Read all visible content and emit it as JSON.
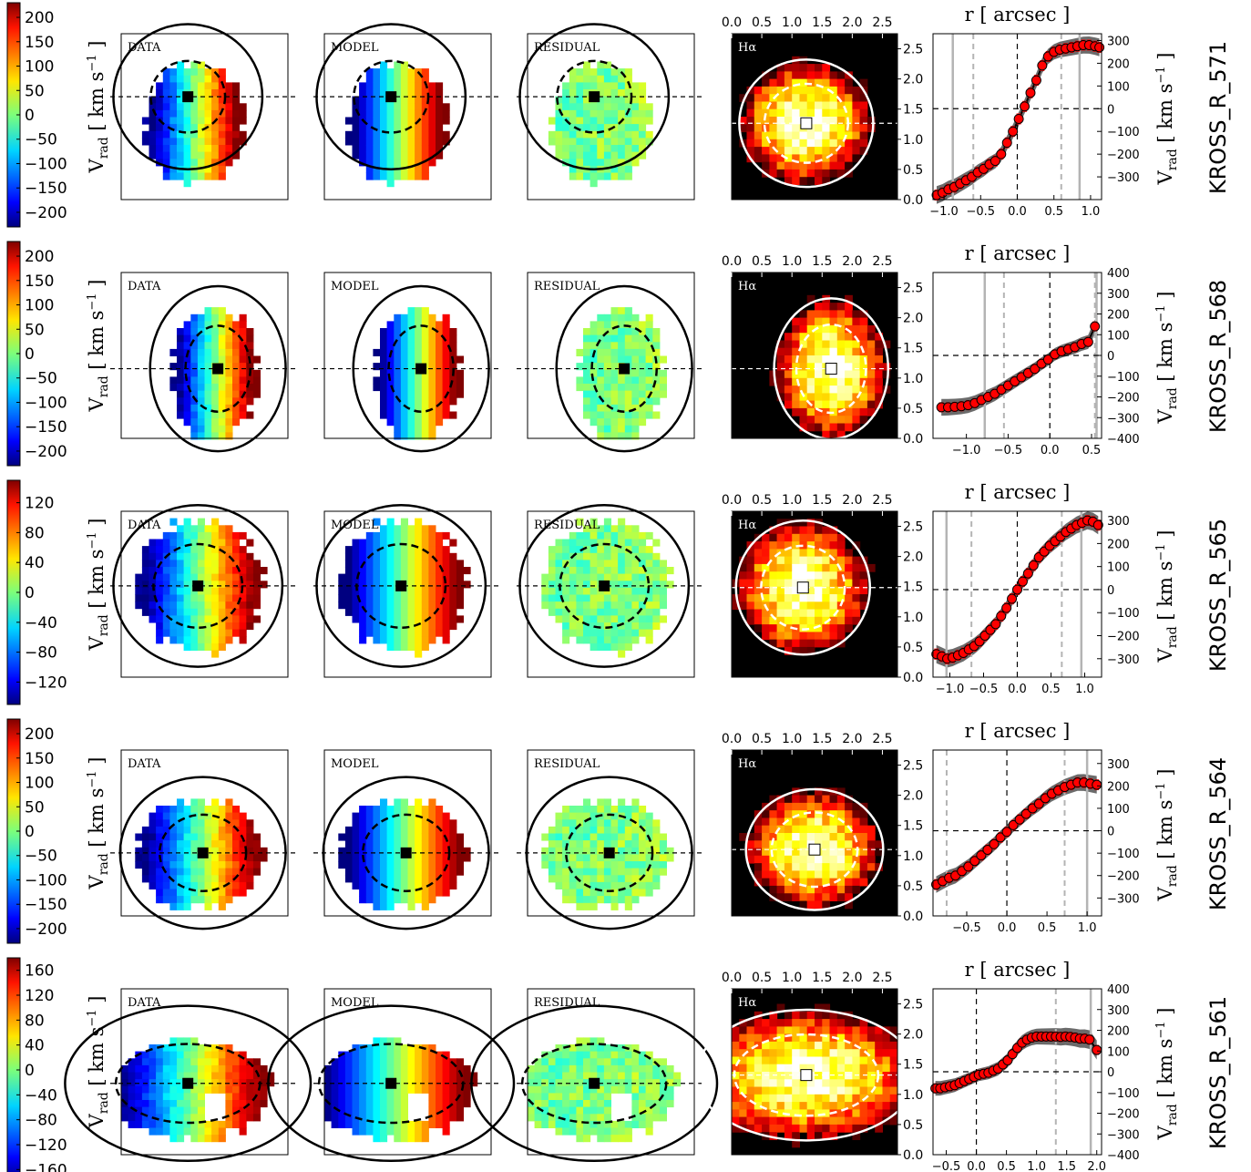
{
  "figure": {
    "type": "kinematic-maps-and-rotation-curves",
    "panel_labels": {
      "data": "DATA",
      "model": "MODEL",
      "residual": "RESIDUAL",
      "halpha": "Hα"
    },
    "colorbar_label_main": "V",
    "colorbar_label_sub": "rad",
    "colorbar_label_unit": "[ km s",
    "colorbar_label_exp": "−1",
    "colorbar_label_close": "]",
    "rc_top_label": "r [ arcsec ]",
    "colormap_velocity": "jet",
    "colormap_halpha": "hot",
    "colors": {
      "points": "#ff0000",
      "model_band": "#3a3a3a",
      "model_line": "#000000",
      "grey_lines": "#b4b4b4"
    }
  },
  "chart_data": [
    {
      "galaxy": "KROSS_R_571",
      "colorbar_ticks": [
        "200",
        "150",
        "100",
        "50",
        "0",
        "−50",
        "−100",
        "−150",
        "−200"
      ],
      "colorbar_range": [
        -230,
        230
      ],
      "halpha_axis_ticks": [
        "0.0",
        "0.5",
        "1.0",
        "1.5",
        "2.0",
        "2.5"
      ],
      "halpha_right_ticks": [
        "2.5",
        "2.0",
        "1.5",
        "1.0",
        "0.5",
        "0.0"
      ],
      "rc_x_ticks": [
        "−1.0",
        "−0.5",
        "0.0",
        "0.5",
        "1.0"
      ],
      "rc_y_ticks": [
        "300",
        "200",
        "100",
        "0",
        "−100",
        "−200",
        "−300"
      ],
      "xlim": [
        -1.15,
        1.15
      ],
      "ylim": [
        -400,
        330
      ],
      "x": [
        -1.1,
        -1.02,
        -0.94,
        -0.86,
        -0.78,
        -0.7,
        -0.62,
        -0.54,
        -0.46,
        -0.38,
        -0.3,
        -0.22,
        -0.14,
        -0.06,
        0.02,
        0.1,
        0.18,
        0.26,
        0.34,
        0.42,
        0.5,
        0.58,
        0.66,
        0.74,
        0.82,
        0.9,
        0.98,
        1.06,
        1.12
      ],
      "y": [
        -380,
        -370,
        -355,
        -345,
        -330,
        -315,
        -300,
        -280,
        -265,
        -245,
        -230,
        -200,
        -150,
        -100,
        -45,
        10,
        70,
        125,
        190,
        230,
        250,
        260,
        265,
        270,
        275,
        280,
        280,
        275,
        270
      ],
      "dashed_lines": [
        -0.6,
        0.6
      ],
      "grey_lines": [
        -0.88,
        0.85
      ],
      "center_line": 0.0
    },
    {
      "galaxy": "KROSS_R_568",
      "colorbar_ticks": [
        "200",
        "150",
        "100",
        "50",
        "0",
        "−50",
        "−100",
        "−150",
        "−200"
      ],
      "colorbar_range": [
        -230,
        230
      ],
      "halpha_axis_ticks": [
        "0.0",
        "0.5",
        "1.0",
        "1.5",
        "2.0",
        "2.5"
      ],
      "halpha_right_ticks": [
        "2.5",
        "2.0",
        "1.5",
        "1.0",
        "0.5",
        "0.0"
      ],
      "rc_x_ticks": [
        "−1.0",
        "−0.5",
        "0.0",
        "0.5"
      ],
      "rc_y_ticks": [
        "400",
        "300",
        "200",
        "100",
        "0",
        "−100",
        "−200",
        "−300",
        "−400"
      ],
      "xlim": [
        -1.4,
        0.62
      ],
      "ylim": [
        -400,
        400
      ],
      "x": [
        -1.3,
        -1.22,
        -1.14,
        -1.06,
        -0.98,
        -0.9,
        -0.82,
        -0.74,
        -0.66,
        -0.58,
        -0.5,
        -0.42,
        -0.34,
        -0.26,
        -0.18,
        -0.1,
        -0.02,
        0.06,
        0.14,
        0.22,
        0.3,
        0.38,
        0.46,
        0.54
      ],
      "y": [
        -250,
        -250,
        -248,
        -245,
        -240,
        -230,
        -215,
        -200,
        -185,
        -165,
        -145,
        -125,
        -105,
        -85,
        -65,
        -40,
        -20,
        5,
        20,
        30,
        40,
        55,
        65,
        140
      ],
      "dashed_lines": [
        -0.55,
        0.54
      ],
      "grey_lines": [
        -0.78,
        0.56
      ],
      "center_line": 0.0
    },
    {
      "galaxy": "KROSS_R_565",
      "colorbar_ticks": [
        "120",
        "80",
        "40",
        "0",
        "−40",
        "−80",
        "−120"
      ],
      "colorbar_range": [
        -150,
        150
      ],
      "halpha_axis_ticks": [
        "0.0",
        "0.5",
        "1.0",
        "1.5",
        "2.0",
        "2.5"
      ],
      "halpha_right_ticks": [
        "2.5",
        "2.0",
        "1.5",
        "1.0",
        "0.5",
        "0.0"
      ],
      "rc_x_ticks": [
        "−1.0",
        "−0.5",
        "0.0",
        "0.5",
        "1.0"
      ],
      "rc_y_ticks": [
        "300",
        "200",
        "100",
        "0",
        "−100",
        "−200",
        "−300"
      ],
      "xlim": [
        -1.25,
        1.25
      ],
      "ylim": [
        -380,
        340
      ],
      "x": [
        -1.2,
        -1.12,
        -1.04,
        -0.96,
        -0.88,
        -0.8,
        -0.72,
        -0.64,
        -0.56,
        -0.48,
        -0.4,
        -0.32,
        -0.24,
        -0.16,
        -0.08,
        0.0,
        0.08,
        0.16,
        0.24,
        0.32,
        0.4,
        0.48,
        0.56,
        0.64,
        0.72,
        0.8,
        0.88,
        0.96,
        1.04,
        1.12,
        1.2
      ],
      "y": [
        -280,
        -290,
        -300,
        -295,
        -285,
        -275,
        -260,
        -245,
        -225,
        -200,
        -175,
        -150,
        -115,
        -80,
        -40,
        0,
        35,
        70,
        105,
        140,
        165,
        190,
        210,
        230,
        250,
        265,
        280,
        290,
        300,
        295,
        280
      ],
      "dashed_lines": [
        -0.68,
        0.66
      ],
      "grey_lines": [
        -1.05,
        0.95
      ],
      "center_line": 0.0
    },
    {
      "galaxy": "KROSS_R_564",
      "colorbar_ticks": [
        "200",
        "150",
        "100",
        "50",
        "0",
        "−50",
        "−100",
        "−150",
        "−200"
      ],
      "colorbar_range": [
        -230,
        230
      ],
      "halpha_axis_ticks": [
        "0.0",
        "0.5",
        "1.0",
        "1.5",
        "2.0",
        "2.5"
      ],
      "halpha_right_ticks": [
        "2.5",
        "2.0",
        "1.5",
        "1.0",
        "0.5",
        "0.0"
      ],
      "rc_x_ticks": [
        "−0.5",
        "0.0",
        "0.5",
        "1.0"
      ],
      "rc_y_ticks": [
        "300",
        "200",
        "100",
        "0",
        "−100",
        "−200",
        "−300"
      ],
      "xlim": [
        -0.92,
        1.18
      ],
      "ylim": [
        -380,
        360
      ],
      "x": [
        -0.88,
        -0.8,
        -0.72,
        -0.64,
        -0.56,
        -0.48,
        -0.4,
        -0.32,
        -0.24,
        -0.16,
        -0.08,
        0.0,
        0.08,
        0.16,
        0.24,
        0.32,
        0.4,
        0.48,
        0.56,
        0.64,
        0.72,
        0.8,
        0.88,
        0.96,
        1.04,
        1.12
      ],
      "y": [
        -240,
        -225,
        -210,
        -200,
        -180,
        -160,
        -135,
        -110,
        -85,
        -60,
        -30,
        -5,
        25,
        50,
        75,
        100,
        120,
        145,
        165,
        180,
        195,
        205,
        215,
        215,
        210,
        205
      ],
      "dashed_lines": [
        -0.75,
        0.72
      ],
      "grey_lines": [
        1.0
      ],
      "center_line": 0.0
    },
    {
      "galaxy": "KROSS_R_561",
      "colorbar_ticks": [
        "160",
        "120",
        "80",
        "40",
        "0",
        "−40",
        "−80",
        "−120",
        "−160"
      ],
      "colorbar_range": [
        -180,
        180
      ],
      "halpha_axis_ticks": [
        "0.0",
        "0.5",
        "1.0",
        "1.5",
        "2.0",
        "2.5"
      ],
      "halpha_right_ticks": [
        "2.5",
        "2.0",
        "1.5",
        "1.0",
        "0.5",
        "0.0"
      ],
      "rc_x_ticks": [
        "−0.5",
        "0.0",
        "0.5",
        "1.0",
        "1.5",
        "2.0"
      ],
      "rc_y_ticks": [
        "400",
        "300",
        "200",
        "100",
        "0",
        "−100",
        "−200",
        "−300",
        "−400"
      ],
      "xlim": [
        -0.72,
        2.08
      ],
      "ylim": [
        -400,
        400
      ],
      "x": [
        -0.68,
        -0.6,
        -0.52,
        -0.44,
        -0.36,
        -0.28,
        -0.2,
        -0.12,
        -0.04,
        0.04,
        0.12,
        0.2,
        0.28,
        0.36,
        0.44,
        0.52,
        0.6,
        0.68,
        0.76,
        0.84,
        0.92,
        1.0,
        1.08,
        1.16,
        1.24,
        1.32,
        1.4,
        1.48,
        1.56,
        1.64,
        1.72,
        1.8,
        1.88,
        2.0
      ],
      "y": [
        -80,
        -80,
        -75,
        -70,
        -65,
        -55,
        -45,
        -35,
        -25,
        -15,
        -10,
        -5,
        5,
        15,
        35,
        55,
        85,
        115,
        140,
        155,
        165,
        170,
        170,
        170,
        170,
        170,
        168,
        170,
        168,
        165,
        160,
        160,
        155,
        105
      ],
      "dashed_lines": [
        1.32
      ],
      "grey_lines": [
        1.9
      ],
      "center_line": 0.0
    }
  ]
}
